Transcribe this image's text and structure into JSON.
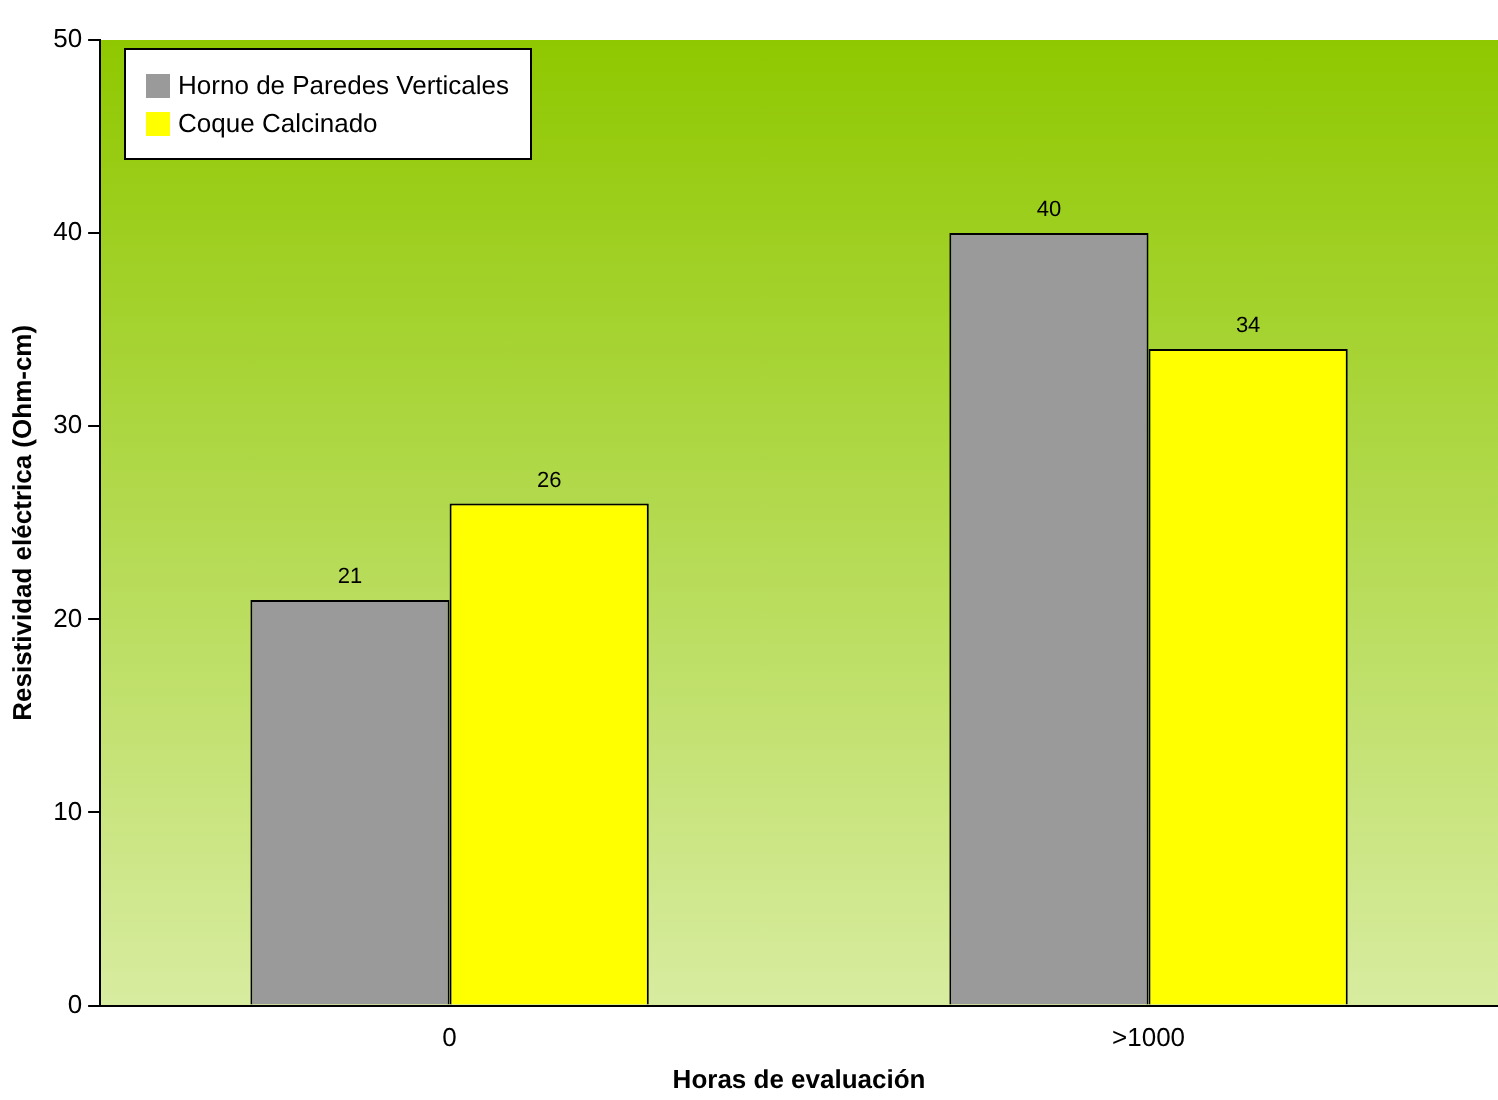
{
  "chart_data": {
    "type": "bar",
    "xlabel": "Horas de evaluación",
    "ylabel": "Resistividad eléctrica (Ohm-cm)",
    "categories": [
      "0",
      ">1000"
    ],
    "series": [
      {
        "name": "Horno de Paredes Verticales",
        "color": "#9a9a9a",
        "values": [
          21,
          40
        ]
      },
      {
        "name": "Coque Calcinado",
        "color": "#ffff00",
        "values": [
          26,
          34
        ]
      }
    ],
    "ylim": [
      0,
      50
    ],
    "yticks": [
      0,
      10,
      20,
      30,
      40,
      50
    ],
    "data_labels": true,
    "legend": "top left",
    "grid": false
  }
}
